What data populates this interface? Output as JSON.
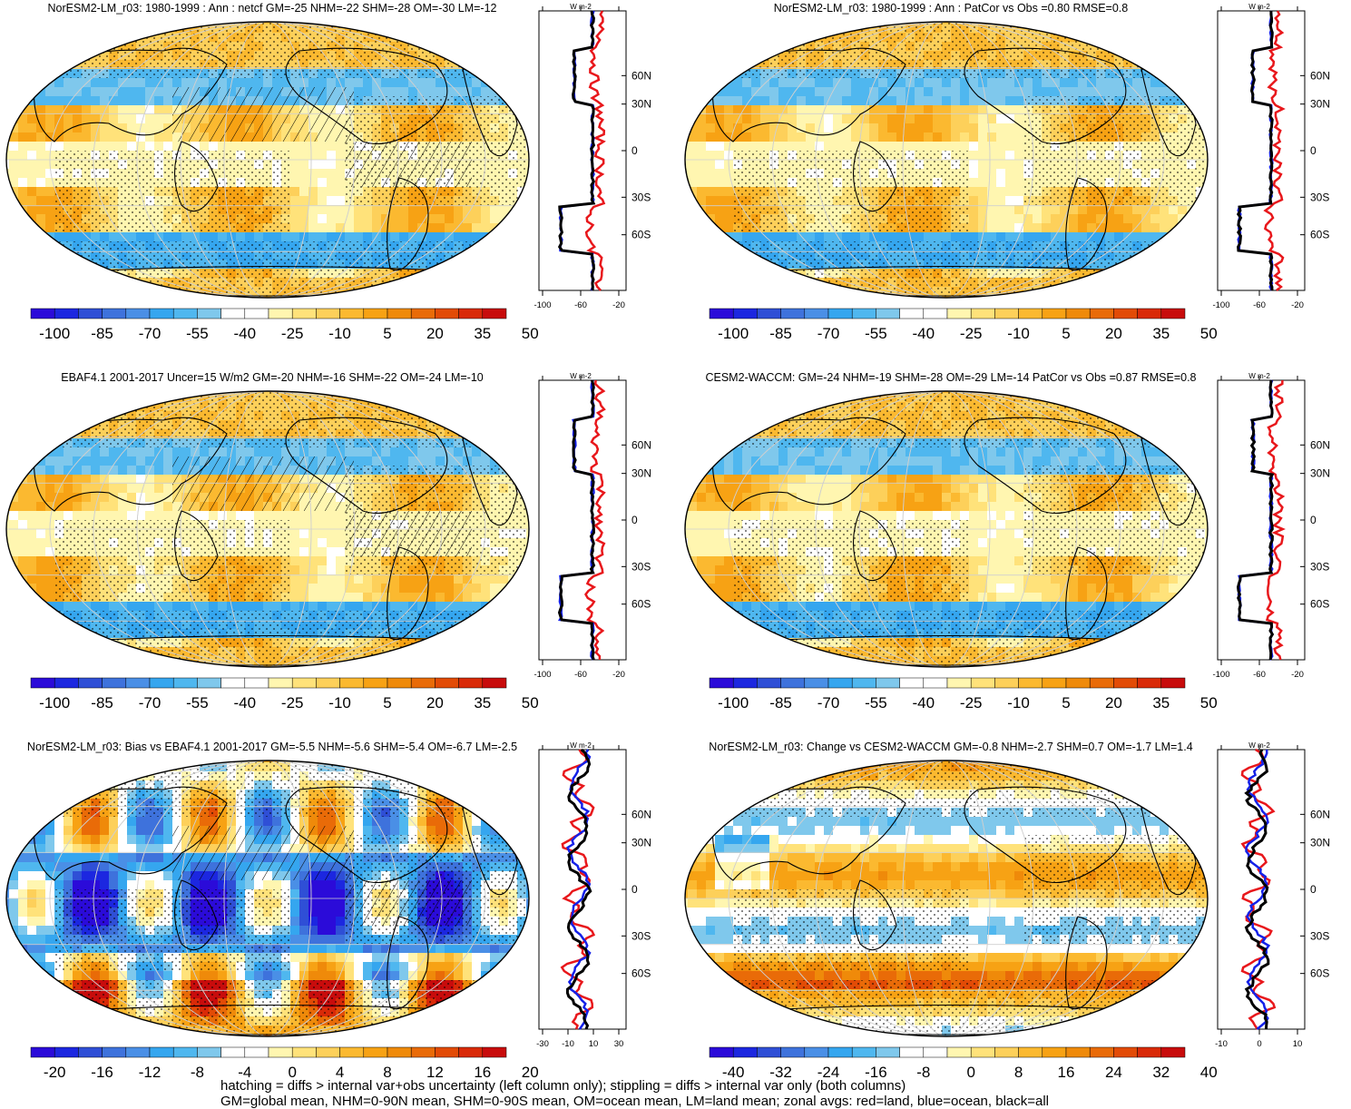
{
  "panels": [
    {
      "title": "NorESM2-LM_r03: 1980-1999 : Ann : netcf GM=-25 NHM=-22 SHM=-28 OM=-30 LM=-12",
      "colorbar": {
        "labels": [
          "-100",
          "-85",
          "-70",
          "-55",
          "-40",
          "-25",
          "-10",
          "5",
          "20",
          "35",
          "50"
        ],
        "scale": "wide"
      },
      "zonal": {
        "units": "W m-2",
        "xticks": [
          "-100",
          "-60",
          "-20"
        ],
        "yticks": [
          "60N",
          "30N",
          "0",
          "30S",
          "60S"
        ]
      },
      "hatched": true
    },
    {
      "title": "NorESM2-LM_r03: 1980-1999 : Ann : PatCor vs Obs =0.80 RMSE=0.8",
      "colorbar": {
        "labels": [
          "-100",
          "-85",
          "-70",
          "-55",
          "-40",
          "-25",
          "-10",
          "5",
          "20",
          "35",
          "50"
        ],
        "scale": "wide"
      },
      "zonal": {
        "units": "W m-2",
        "xticks": [
          "-100",
          "-60",
          "-20"
        ],
        "yticks": [
          "60N",
          "30N",
          "0",
          "30S",
          "60S"
        ]
      },
      "hatched": false
    },
    {
      "title": "EBAF4.1 2001-2017 Uncer=15 W/m2 GM=-20 NHM=-16 SHM=-22 OM=-24 LM=-10",
      "colorbar": {
        "labels": [
          "-100",
          "-85",
          "-70",
          "-55",
          "-40",
          "-25",
          "-10",
          "5",
          "20",
          "35",
          "50"
        ],
        "scale": "wide"
      },
      "zonal": {
        "units": "W m-2",
        "xticks": [
          "-100",
          "-60",
          "-20"
        ],
        "yticks": [
          "60N",
          "30N",
          "0",
          "30S",
          "60S"
        ]
      },
      "hatched": true
    },
    {
      "title": "CESM2-WACCM: GM=-24 NHM=-19 SHM=-28 OM=-29 LM=-14 PatCor vs Obs =0.87 RMSE=0.8",
      "colorbar": {
        "labels": [
          "-100",
          "-85",
          "-70",
          "-55",
          "-40",
          "-25",
          "-10",
          "5",
          "20",
          "35",
          "50"
        ],
        "scale": "wide"
      },
      "zonal": {
        "units": "W m-2",
        "xticks": [
          "-100",
          "-60",
          "-20"
        ],
        "yticks": [
          "60N",
          "30N",
          "0",
          "30S",
          "60S"
        ]
      },
      "hatched": false
    },
    {
      "title": "NorESM2-LM_r03: Bias vs EBAF4.1 2001-2017 GM=-5.5 NHM=-5.6 SHM=-5.4 OM=-6.7 LM=-2.5",
      "colorbar": {
        "labels": [
          "-20",
          "-16",
          "-12",
          "-8",
          "-4",
          "0",
          "4",
          "8",
          "12",
          "16",
          "20"
        ],
        "scale": "bias"
      },
      "zonal": {
        "units": "W m-2",
        "xticks": [
          "-30",
          "-10",
          "10",
          "30"
        ],
        "yticks": [
          "60N",
          "30N",
          "0",
          "30S",
          "60S"
        ]
      },
      "hatched": true
    },
    {
      "title": "NorESM2-LM_r03: Change vs CESM2-WACCM GM=-0.8 NHM=-2.7 SHM=0.7 OM=-1.7 LM=1.4",
      "colorbar": {
        "labels": [
          "-40",
          "-32",
          "-24",
          "-16",
          "-8",
          "0",
          "8",
          "16",
          "24",
          "32",
          "40"
        ],
        "scale": "change"
      },
      "zonal": {
        "units": "W m-2",
        "xticks": [
          "-10",
          "0",
          "10"
        ],
        "yticks": [
          "60N",
          "30N",
          "0",
          "30S",
          "60S"
        ]
      },
      "hatched": false
    }
  ],
  "colors": {
    "palette": [
      "#2b0bd9",
      "#1c27e0",
      "#2f4fd6",
      "#3e72dc",
      "#4a8fe6",
      "#35a6ef",
      "#4fb7ef",
      "#7fc8ec",
      "#ffffff",
      "#ffffff",
      "#fff6b0",
      "#ffe27a",
      "#fdd05a",
      "#fbb930",
      "#f7a214",
      "#ef8a0a",
      "#e96b08",
      "#e24b06",
      "#d92a08",
      "#c80c0c"
    ],
    "land_line": "#e8171b",
    "ocean_line": "#1421e8",
    "all_line": "#000000"
  },
  "footer": {
    "line1": "hatching = diffs > internal var+obs uncertainty (left column only); stippling = diffs > internal var only (both columns)",
    "line2": "GM=global mean, NHM=0-90N mean, SHM=0-90S mean, OM=ocean mean, LM=land mean; zonal avgs: red=land, blue=ocean, black=all"
  }
}
